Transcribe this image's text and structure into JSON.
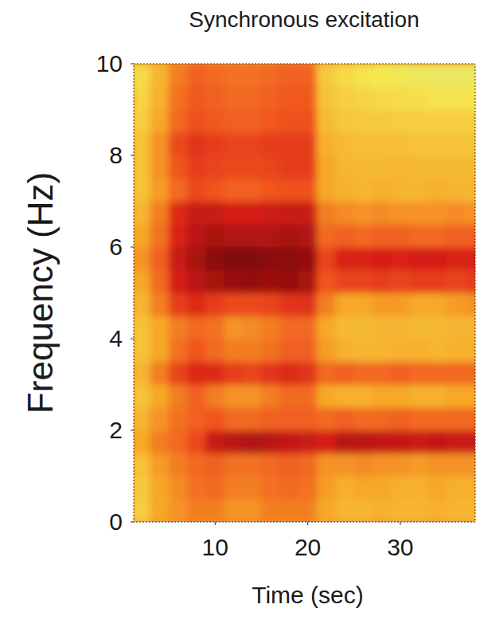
{
  "chart_data": {
    "type": "heatmap",
    "title": "Synchronous excitation",
    "x_label": "Time (sec)",
    "y_label": "Frequency (Hz)",
    "xlim": [
      1.2,
      38.1
    ],
    "ylim": [
      0,
      10
    ],
    "xticks": [
      10,
      20,
      30
    ],
    "yticks": [
      0,
      2,
      4,
      6,
      8,
      10
    ],
    "zlim": [
      0,
      1
    ],
    "x": [
      2,
      4,
      6,
      8,
      10,
      12,
      14,
      16,
      18,
      20,
      22,
      24,
      26,
      28,
      30,
      32,
      34,
      36,
      38
    ],
    "y": [
      0.25,
      0.75,
      1.25,
      1.75,
      2.25,
      2.75,
      3.25,
      3.75,
      4.25,
      4.75,
      5.25,
      5.75,
      6.25,
      6.75,
      7.25,
      7.75,
      8.25,
      8.75,
      9.25,
      9.75
    ],
    "z": [
      [
        0.3,
        0.45,
        0.5,
        0.55,
        0.55,
        0.5,
        0.5,
        0.55,
        0.55,
        0.55,
        0.45,
        0.4,
        0.4,
        0.42,
        0.4,
        0.4,
        0.42,
        0.4,
        0.4
      ],
      [
        0.32,
        0.45,
        0.52,
        0.58,
        0.6,
        0.55,
        0.55,
        0.58,
        0.6,
        0.58,
        0.48,
        0.42,
        0.45,
        0.45,
        0.42,
        0.42,
        0.45,
        0.42,
        0.42
      ],
      [
        0.35,
        0.48,
        0.55,
        0.6,
        0.62,
        0.58,
        0.58,
        0.6,
        0.62,
        0.6,
        0.5,
        0.5,
        0.52,
        0.5,
        0.5,
        0.48,
        0.5,
        0.5,
        0.5
      ],
      [
        0.45,
        0.55,
        0.6,
        0.68,
        0.85,
        0.88,
        0.9,
        0.88,
        0.86,
        0.85,
        0.82,
        0.88,
        0.88,
        0.86,
        0.86,
        0.85,
        0.86,
        0.85,
        0.85
      ],
      [
        0.4,
        0.5,
        0.58,
        0.62,
        0.65,
        0.6,
        0.6,
        0.62,
        0.62,
        0.62,
        0.6,
        0.62,
        0.6,
        0.6,
        0.62,
        0.6,
        0.6,
        0.6,
        0.6
      ],
      [
        0.35,
        0.45,
        0.55,
        0.62,
        0.55,
        0.5,
        0.5,
        0.55,
        0.6,
        0.6,
        0.45,
        0.42,
        0.42,
        0.45,
        0.45,
        0.42,
        0.42,
        0.45,
        0.45
      ],
      [
        0.4,
        0.55,
        0.7,
        0.78,
        0.78,
        0.72,
        0.7,
        0.75,
        0.78,
        0.75,
        0.6,
        0.62,
        0.6,
        0.6,
        0.62,
        0.6,
        0.6,
        0.6,
        0.6
      ],
      [
        0.35,
        0.45,
        0.58,
        0.65,
        0.6,
        0.55,
        0.55,
        0.58,
        0.62,
        0.62,
        0.48,
        0.42,
        0.4,
        0.4,
        0.42,
        0.42,
        0.4,
        0.42,
        0.42
      ],
      [
        0.35,
        0.45,
        0.55,
        0.6,
        0.58,
        0.5,
        0.52,
        0.55,
        0.6,
        0.6,
        0.45,
        0.38,
        0.38,
        0.4,
        0.4,
        0.38,
        0.38,
        0.4,
        0.4
      ],
      [
        0.4,
        0.55,
        0.72,
        0.78,
        0.72,
        0.68,
        0.68,
        0.7,
        0.75,
        0.76,
        0.55,
        0.45,
        0.45,
        0.48,
        0.48,
        0.45,
        0.45,
        0.48,
        0.5
      ],
      [
        0.45,
        0.6,
        0.82,
        0.88,
        0.92,
        0.95,
        0.96,
        0.94,
        0.95,
        0.92,
        0.65,
        0.7,
        0.7,
        0.72,
        0.7,
        0.72,
        0.72,
        0.7,
        0.72
      ],
      [
        0.5,
        0.62,
        0.85,
        0.92,
        0.98,
        1.0,
        1.0,
        0.98,
        0.98,
        0.96,
        0.7,
        0.8,
        0.8,
        0.82,
        0.8,
        0.82,
        0.82,
        0.8,
        0.8
      ],
      [
        0.45,
        0.58,
        0.8,
        0.88,
        0.92,
        0.9,
        0.9,
        0.9,
        0.92,
        0.9,
        0.6,
        0.62,
        0.6,
        0.62,
        0.62,
        0.6,
        0.6,
        0.62,
        0.62
      ],
      [
        0.4,
        0.55,
        0.78,
        0.85,
        0.85,
        0.82,
        0.82,
        0.84,
        0.85,
        0.85,
        0.55,
        0.52,
        0.5,
        0.52,
        0.5,
        0.5,
        0.5,
        0.52,
        0.5
      ],
      [
        0.35,
        0.48,
        0.6,
        0.68,
        0.65,
        0.62,
        0.62,
        0.65,
        0.66,
        0.66,
        0.45,
        0.42,
        0.4,
        0.42,
        0.4,
        0.4,
        0.42,
        0.4,
        0.4
      ],
      [
        0.35,
        0.5,
        0.65,
        0.72,
        0.7,
        0.68,
        0.68,
        0.7,
        0.72,
        0.72,
        0.45,
        0.4,
        0.38,
        0.38,
        0.4,
        0.38,
        0.38,
        0.38,
        0.38
      ],
      [
        0.35,
        0.5,
        0.68,
        0.75,
        0.72,
        0.7,
        0.7,
        0.72,
        0.72,
        0.72,
        0.42,
        0.38,
        0.36,
        0.36,
        0.36,
        0.35,
        0.35,
        0.35,
        0.35
      ],
      [
        0.3,
        0.45,
        0.6,
        0.66,
        0.64,
        0.62,
        0.62,
        0.64,
        0.66,
        0.66,
        0.38,
        0.33,
        0.32,
        0.32,
        0.3,
        0.3,
        0.3,
        0.3,
        0.3
      ],
      [
        0.28,
        0.42,
        0.58,
        0.64,
        0.62,
        0.6,
        0.6,
        0.62,
        0.64,
        0.64,
        0.35,
        0.3,
        0.28,
        0.26,
        0.25,
        0.24,
        0.22,
        0.22,
        0.22
      ],
      [
        0.25,
        0.4,
        0.55,
        0.62,
        0.6,
        0.58,
        0.58,
        0.6,
        0.62,
        0.62,
        0.32,
        0.26,
        0.22,
        0.2,
        0.18,
        0.16,
        0.15,
        0.15,
        0.15
      ]
    ]
  }
}
